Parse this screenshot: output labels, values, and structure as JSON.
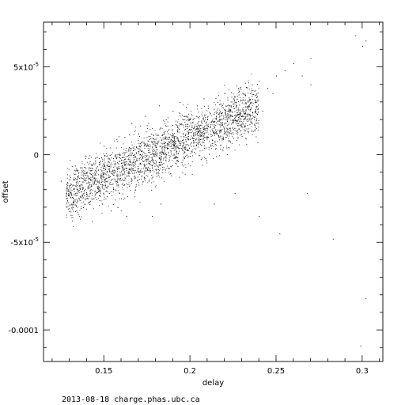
{
  "chart_data": {
    "type": "scatter",
    "xlabel": "delay",
    "ylabel": "offset",
    "xlim": [
      0.115,
      0.312
    ],
    "ylim": [
      -0.000118,
      7.55e-05
    ],
    "x_ticks": [
      {
        "value": 0.15,
        "label": "0.15"
      },
      {
        "value": 0.2,
        "label": "0.2"
      },
      {
        "value": 0.25,
        "label": "0.25"
      },
      {
        "value": 0.3,
        "label": "0.3"
      }
    ],
    "y_ticks": [
      {
        "value": 5e-05,
        "label": "5x10",
        "exponent": "-5"
      },
      {
        "value": 0,
        "label": "0"
      },
      {
        "value": -5e-05,
        "label": "-5x10",
        "exponent": "-5"
      },
      {
        "value": -0.0001,
        "label": "-0.0001"
      }
    ],
    "points_note_x": [
      0.125,
      0.13,
      0.135,
      0.14,
      0.145,
      0.15,
      0.155,
      0.16,
      0.165,
      0.17,
      0.175,
      0.18,
      0.185,
      0.19,
      0.195,
      0.2,
      0.205,
      0.21,
      0.215,
      0.22,
      0.225,
      0.23,
      0.235,
      0.24,
      0.245,
      0.25,
      0.255,
      0.26,
      0.265,
      0.27,
      0.28,
      0.285,
      0.295,
      0.3,
      0.302
    ],
    "points": [
      [
        0.125,
        -1.5e-05
      ],
      [
        0.128,
        -2e-05
      ],
      [
        0.13,
        -1.2e-05
      ],
      [
        0.132,
        -2.5e-05
      ],
      [
        0.134,
        -8e-06
      ],
      [
        0.136,
        -1.8e-05
      ],
      [
        0.138,
        -3e-05
      ],
      [
        0.14,
        -1e-05
      ],
      [
        0.142,
        -2.2e-05
      ],
      [
        0.143,
        -3.8e-05
      ],
      [
        0.145,
        -5e-06
      ],
      [
        0.147,
        -2e-05
      ],
      [
        0.149,
        -2.8e-05
      ],
      [
        0.15,
        5e-06
      ],
      [
        0.152,
        -1.5e-05
      ],
      [
        0.154,
        -3.2e-05
      ],
      [
        0.156,
        8e-06
      ],
      [
        0.158,
        -1.2e-05
      ],
      [
        0.16,
        -2.5e-05
      ],
      [
        0.162,
        1e-05
      ],
      [
        0.164,
        -5e-06
      ],
      [
        0.166,
        1.8e-05
      ],
      [
        0.168,
        -2e-05
      ],
      [
        0.17,
        1.2e-05
      ],
      [
        0.172,
        2e-06
      ],
      [
        0.174,
        2.2e-05
      ],
      [
        0.176,
        -1.5e-05
      ],
      [
        0.178,
        1.5e-05
      ],
      [
        0.18,
        5e-06
      ],
      [
        0.182,
        2.8e-05
      ],
      [
        0.184,
        -1e-05
      ],
      [
        0.186,
        2e-05
      ],
      [
        0.188,
        1e-05
      ],
      [
        0.19,
        2.5e-05
      ],
      [
        0.192,
        -5e-06
      ],
      [
        0.194,
        3e-05
      ],
      [
        0.196,
        1.2e-05
      ],
      [
        0.198,
        2.2e-05
      ],
      [
        0.2,
        2e-05
      ],
      [
        0.202,
        8e-06
      ],
      [
        0.204,
        2.8e-05
      ],
      [
        0.206,
        1.5e-05
      ],
      [
        0.208,
        3.2e-05
      ],
      [
        0.21,
        2e-05
      ],
      [
        0.212,
        5e-06
      ],
      [
        0.214,
        2.6e-05
      ],
      [
        0.216,
        3e-05
      ],
      [
        0.218,
        1.8e-05
      ],
      [
        0.22,
        3.5e-05
      ],
      [
        0.222,
        2.5e-05
      ],
      [
        0.224,
        1.2e-05
      ],
      [
        0.226,
        3e-05
      ],
      [
        0.228,
        3.8e-05
      ],
      [
        0.23,
        2.2e-05
      ],
      [
        0.232,
        3.4e-05
      ],
      [
        0.234,
        2.8e-05
      ],
      [
        0.236,
        4e-05
      ],
      [
        0.238,
        3e-05
      ],
      [
        0.24,
        4.2e-05
      ],
      [
        0.242,
        2.5e-05
      ],
      [
        0.245,
        3.8e-05
      ],
      [
        0.248,
        3.5e-05
      ],
      [
        0.25,
        4.5e-05
      ],
      [
        0.255,
        4.8e-05
      ],
      [
        0.26,
        5.2e-05
      ],
      [
        0.265,
        4.5e-05
      ],
      [
        0.27,
        5.5e-05
      ],
      [
        0.27,
        4e-05
      ],
      [
        0.252,
        -4.5e-05
      ],
      [
        0.24,
        -3.5e-05
      ],
      [
        0.268,
        -2.2e-05
      ],
      [
        0.283,
        -4.8e-05
      ],
      [
        0.296,
        6.8e-05
      ],
      [
        0.3,
        6.2e-05
      ],
      [
        0.302,
        6.5e-05
      ],
      [
        0.302,
        -8.2e-05
      ],
      [
        0.299,
        -0.000109
      ],
      [
        0.163,
        -3.5e-05
      ],
      [
        0.158,
        -3e-05
      ],
      [
        0.178,
        -3.5e-05
      ],
      [
        0.214,
        -2.8e-05
      ],
      [
        0.226,
        -2.2e-05
      ],
      [
        0.183,
        -2.8e-05
      ]
    ]
  },
  "footer": {
    "text": "2013-08-18 charge.phas.ubc.ca"
  }
}
